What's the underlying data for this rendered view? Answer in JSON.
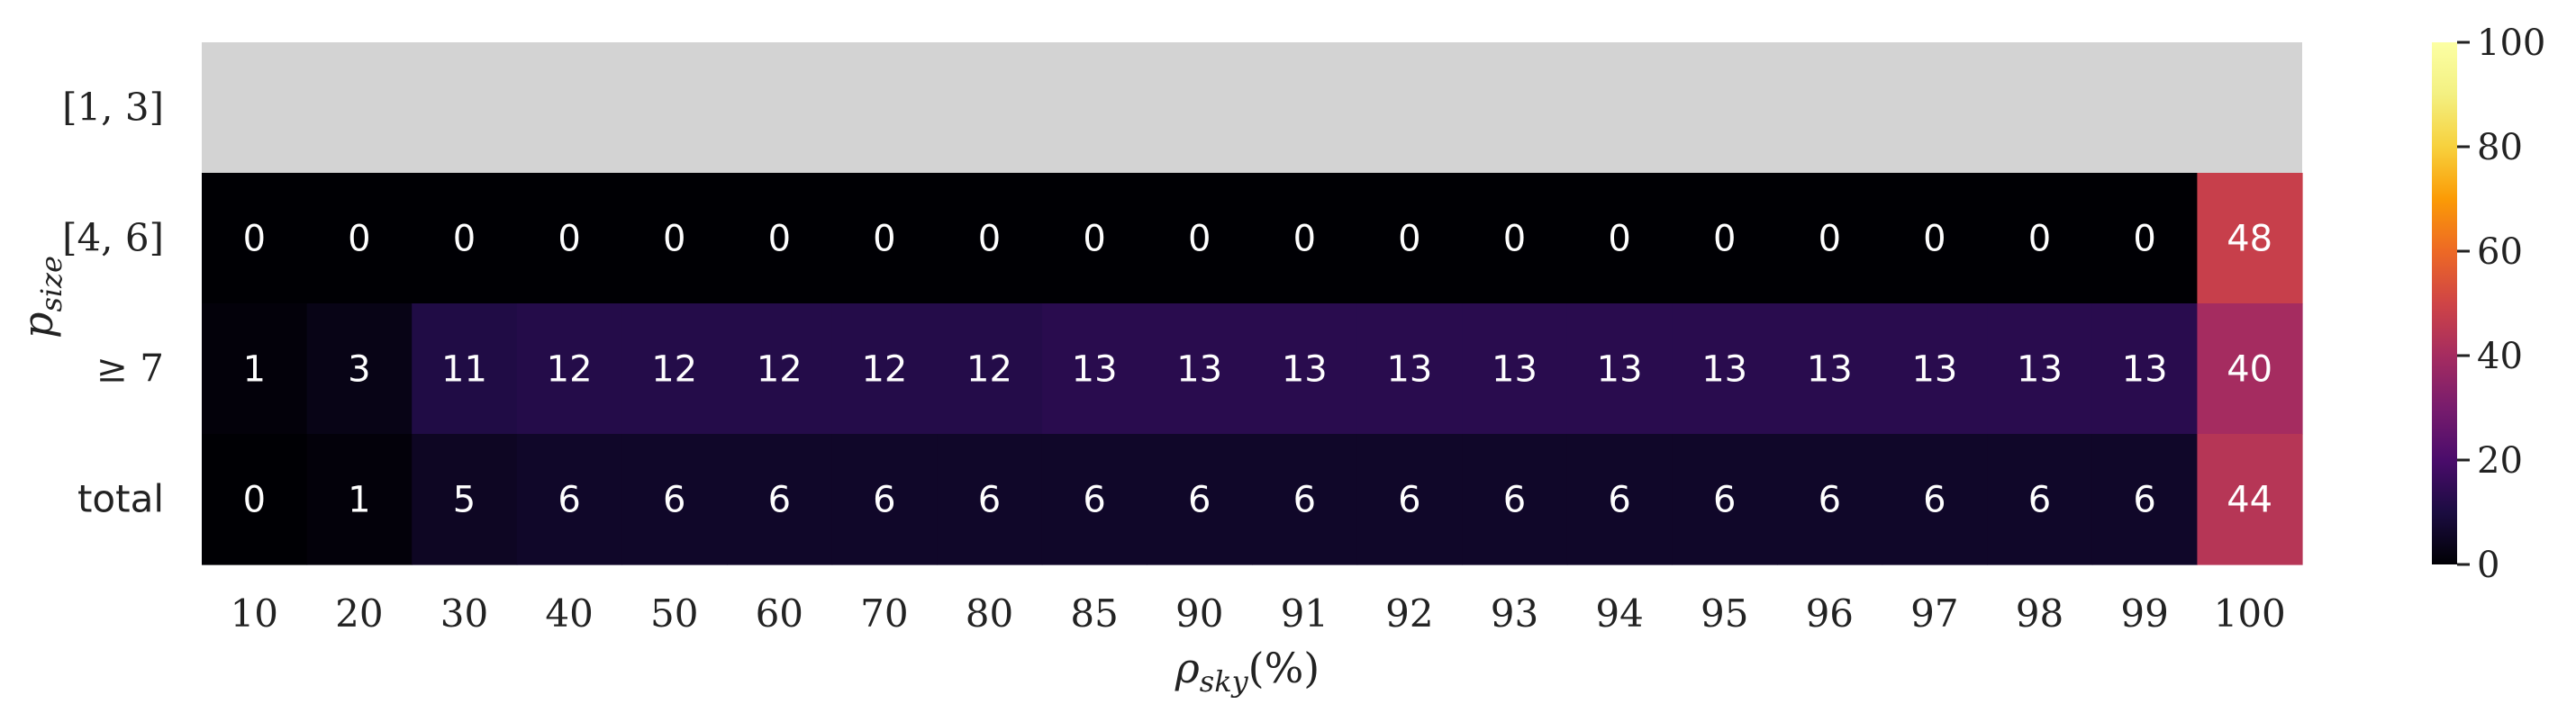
{
  "chart_data": {
    "type": "heatmap",
    "x_tick_labels": [
      "10",
      "20",
      "30",
      "40",
      "50",
      "60",
      "70",
      "80",
      "85",
      "90",
      "91",
      "92",
      "93",
      "94",
      "95",
      "96",
      "97",
      "98",
      "99",
      "100"
    ],
    "y_tick_labels": [
      "[1, 3]",
      "[4, 6]",
      "≥ 7",
      "total"
    ],
    "values": [
      [
        null,
        null,
        null,
        null,
        null,
        null,
        null,
        null,
        null,
        null,
        null,
        null,
        null,
        null,
        null,
        null,
        null,
        null,
        null,
        null
      ],
      [
        0,
        0,
        0,
        0,
        0,
        0,
        0,
        0,
        0,
        0,
        0,
        0,
        0,
        0,
        0,
        0,
        0,
        0,
        0,
        48
      ],
      [
        1,
        3,
        11,
        12,
        12,
        12,
        12,
        12,
        13,
        13,
        13,
        13,
        13,
        13,
        13,
        13,
        13,
        13,
        13,
        40
      ],
      [
        0,
        1,
        5,
        6,
        6,
        6,
        6,
        6,
        6,
        6,
        6,
        6,
        6,
        6,
        6,
        6,
        6,
        6,
        6,
        44
      ]
    ],
    "missing_color": "#d3d3d3",
    "colormap": "inferno",
    "xlabel_main": "ρ",
    "xlabel_sub": "sky",
    "xlabel_rest": "(%)",
    "ylabel_main": "p",
    "ylabel_sub": "size",
    "colorbar": {
      "vmin": 0,
      "vmax": 100,
      "ticks": [
        "0",
        "20",
        "40",
        "60",
        "80",
        "100"
      ]
    }
  }
}
